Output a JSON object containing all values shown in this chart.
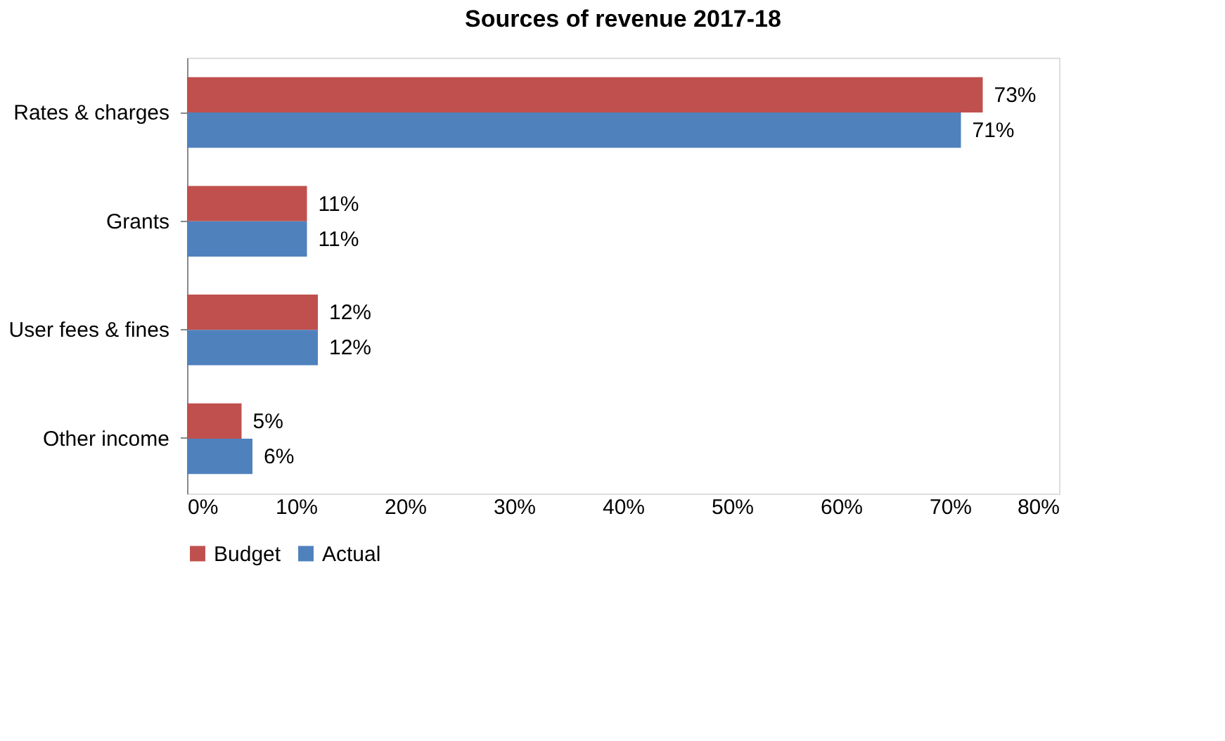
{
  "chart_data": {
    "type": "bar",
    "orientation": "horizontal",
    "title": "Sources of revenue 2017-18",
    "categories": [
      "Rates & charges",
      "Grants",
      "User fees & fines",
      "Other income"
    ],
    "series": [
      {
        "name": "Budget",
        "color": "#c0504d",
        "values": [
          73,
          11,
          12,
          5
        ],
        "value_labels": [
          "73%",
          "11%",
          "12%",
          "5%"
        ]
      },
      {
        "name": "Actual",
        "color": "#4f81bd",
        "values": [
          71,
          11,
          12,
          6
        ],
        "value_labels": [
          "71%",
          "11%",
          "12%",
          "6%"
        ]
      }
    ],
    "xlim": [
      0,
      80
    ],
    "xticks": [
      {
        "value": 0,
        "label": "0%"
      },
      {
        "value": 10,
        "label": "10%"
      },
      {
        "value": 20,
        "label": "20%"
      },
      {
        "value": 30,
        "label": "30%"
      },
      {
        "value": 40,
        "label": "40%"
      },
      {
        "value": 50,
        "label": "50%"
      },
      {
        "value": 60,
        "label": "60%"
      },
      {
        "value": 70,
        "label": "70%"
      },
      {
        "value": 80,
        "label": "80%"
      }
    ],
    "grid": false,
    "legend": "bottom"
  }
}
